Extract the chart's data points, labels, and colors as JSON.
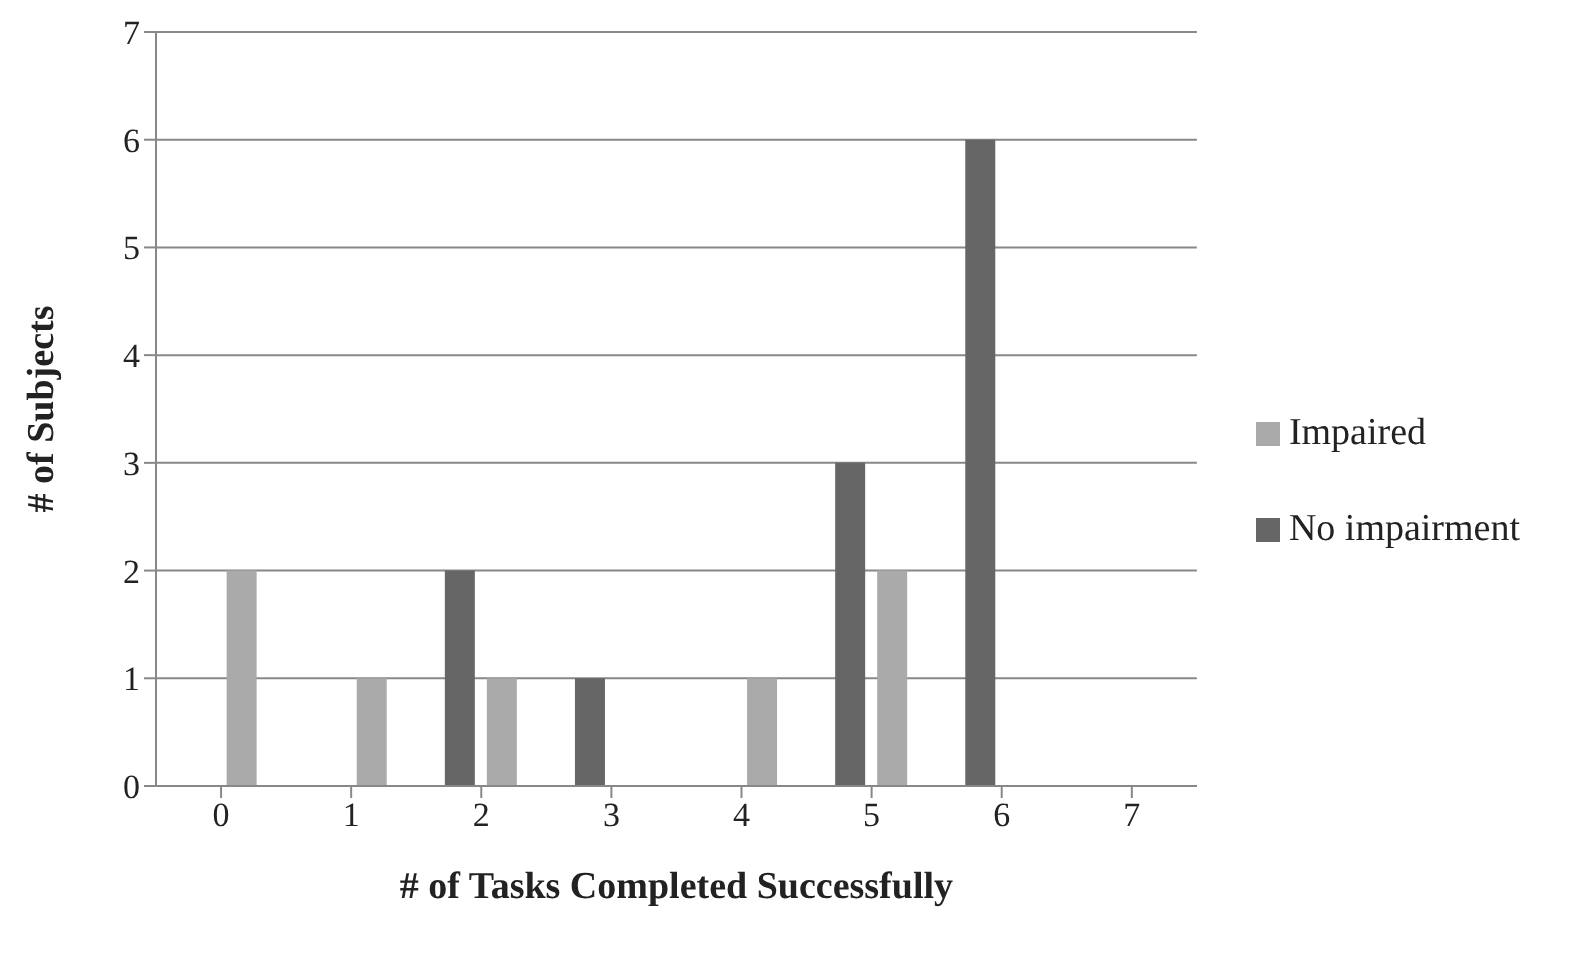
{
  "chart_data": {
    "type": "bar",
    "xlabel": "# of Tasks Completed Successfully",
    "ylabel": "# of Subjects",
    "categories": [
      "0",
      "1",
      "2",
      "3",
      "4",
      "5",
      "6",
      "7"
    ],
    "series": [
      {
        "name": "No impairment",
        "color": "#666666",
        "values": [
          0,
          0,
          2,
          1,
          0,
          3,
          6,
          0
        ]
      },
      {
        "name": "Impaired",
        "color": "#aaaaaa",
        "values": [
          2,
          1,
          1,
          0,
          1,
          2,
          0,
          0
        ]
      }
    ],
    "ylim": [
      0,
      7
    ],
    "yticks": [
      0,
      1,
      2,
      3,
      4,
      5,
      6,
      7
    ],
    "grid": "y",
    "legend": "right"
  }
}
